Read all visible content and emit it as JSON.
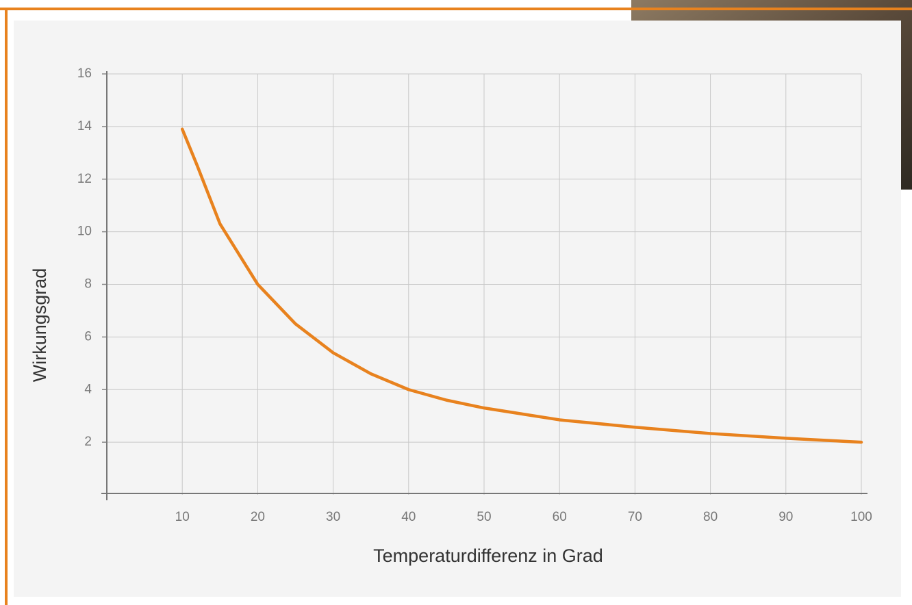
{
  "chart_data": {
    "type": "line",
    "x_label": "Temperaturdifferenz in Grad",
    "y_label": "Wirkungsgrad",
    "x": [
      10,
      12,
      15,
      20,
      25,
      30,
      35,
      40,
      45,
      50,
      60,
      70,
      80,
      90,
      100
    ],
    "series": [
      {
        "color": "#e8821e",
        "values": [
          13.9,
          12.5,
          10.3,
          8.0,
          6.5,
          5.4,
          4.6,
          4.0,
          3.6,
          3.3,
          2.85,
          2.57,
          2.33,
          2.15,
          2.0
        ]
      }
    ],
    "xlim": [
      0,
      100
    ],
    "ylim": [
      0,
      16
    ],
    "xticks": [
      10,
      20,
      30,
      40,
      50,
      60,
      70,
      80,
      90,
      100
    ],
    "yticks": [
      2,
      4,
      6,
      8,
      10,
      12,
      14,
      16
    ],
    "grid": true
  }
}
